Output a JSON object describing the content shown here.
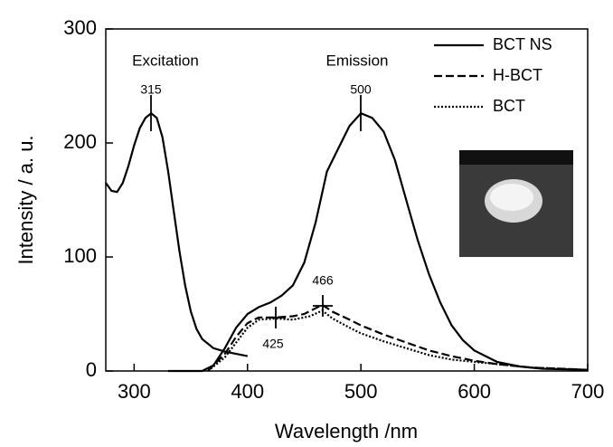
{
  "chart_data": {
    "type": "line",
    "xlabel": "Wavelength /nm",
    "ylabel": "Intensity / a. u.",
    "xlim": [
      275,
      700
    ],
    "ylim": [
      0,
      300
    ],
    "xticks": [
      300,
      400,
      500,
      600,
      700
    ],
    "yticks": [
      0,
      100,
      200,
      300
    ],
    "grid": false,
    "legend": "upper right",
    "annotations": [
      "Excitation",
      "Emission",
      "315",
      "500",
      "466",
      "425"
    ],
    "series": [
      {
        "name": "BCT NS",
        "color": "#000000",
        "dash": "solid",
        "x": [
          275,
          280,
          285,
          290,
          295,
          300,
          305,
          310,
          315,
          320,
          325,
          330,
          335,
          340,
          345,
          350,
          355,
          360,
          370,
          380,
          390,
          400,
          400,
          330,
          360,
          370,
          380,
          390,
          400,
          410,
          420,
          430,
          440,
          450,
          460,
          470,
          480,
          490,
          500,
          510,
          520,
          530,
          540,
          550,
          560,
          570,
          580,
          590,
          600,
          620,
          640,
          660,
          700
        ],
        "values": [
          165,
          158,
          157,
          165,
          180,
          198,
          213,
          222,
          226,
          222,
          205,
          175,
          140,
          105,
          75,
          52,
          37,
          28,
          20,
          17,
          15,
          13,
          null,
          0,
          0,
          5,
          20,
          38,
          50,
          56,
          60,
          66,
          75,
          95,
          130,
          175,
          195,
          215,
          226,
          222,
          210,
          185,
          150,
          115,
          85,
          60,
          40,
          27,
          18,
          8,
          4,
          2,
          1
        ]
      },
      {
        "name": "H-BCT",
        "color": "#000000",
        "dash": "dashed",
        "x": [
          365,
          380,
          390,
          400,
          410,
          425,
          440,
          450,
          460,
          466,
          475,
          490,
          500,
          520,
          540,
          560,
          580,
          600,
          620,
          650,
          700
        ],
        "values": [
          0,
          15,
          30,
          42,
          47,
          47,
          48,
          50,
          55,
          58,
          52,
          45,
          40,
          32,
          25,
          18,
          13,
          9,
          6,
          3,
          1
        ]
      },
      {
        "name": "BCT",
        "color": "#000000",
        "dash": "dotted",
        "x": [
          365,
          380,
          400,
          410,
          425,
          440,
          455,
          466,
          475,
          490,
          500,
          520,
          540,
          560,
          580,
          600,
          620,
          650,
          700
        ],
        "values": [
          0,
          12,
          38,
          45,
          46,
          45,
          48,
          53,
          46,
          38,
          33,
          26,
          20,
          14,
          10,
          8,
          6,
          3,
          1
        ]
      }
    ]
  }
}
